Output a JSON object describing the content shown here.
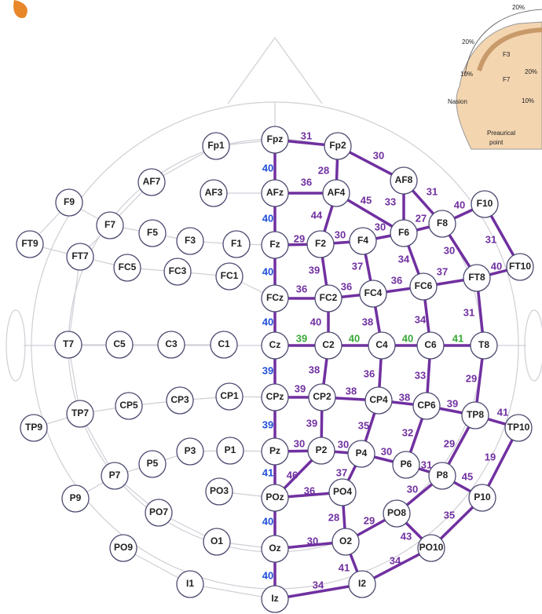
{
  "nodes": [
    "Fp1",
    "AF7",
    "AF3",
    "F9",
    "F7",
    "F5",
    "F3",
    "F1",
    "FT9",
    "FT7",
    "FC5",
    "FC3",
    "FC1",
    "T7",
    "C5",
    "C3",
    "C1",
    "CP1",
    "CP3",
    "CP5",
    "TP7",
    "TP9",
    "P3",
    "P1",
    "P5",
    "P7",
    "P9",
    "PO3",
    "PO7",
    "O1",
    "PO9",
    "I1",
    "Fpz",
    "Fp2",
    "AFz",
    "AF4",
    "AF8",
    "Fz",
    "F2",
    "F4",
    "F6",
    "F8",
    "F10",
    "FCz",
    "FC2",
    "FC4",
    "FC6",
    "FT8",
    "FT10",
    "Cz",
    "C2",
    "C4",
    "C6",
    "T8",
    "CPz",
    "CP2",
    "CP4",
    "CP6",
    "TP8",
    "TP10",
    "Pz",
    "P2",
    "P4",
    "P6",
    "P8",
    "P10",
    "POz",
    "PO4",
    "PO8",
    "O2",
    "PO10",
    "Oz",
    "I2",
    "Iz"
  ],
  "edge_labels": [
    31,
    30,
    28,
    36,
    45,
    33,
    31,
    44,
    40,
    27,
    30,
    31,
    29,
    30,
    30,
    39,
    37,
    34,
    36,
    36,
    36,
    37,
    40,
    40,
    38,
    34,
    31,
    39,
    40,
    40,
    41,
    38,
    36,
    33,
    29,
    39,
    38,
    38,
    39,
    41,
    39,
    35,
    32,
    29,
    19,
    30,
    30,
    30,
    31,
    45,
    46,
    37,
    30,
    36,
    28,
    29,
    43,
    35,
    30,
    41,
    34,
    34,
    40,
    40,
    40,
    40,
    39,
    39,
    41,
    40,
    40
  ],
  "inset_texts": [
    "20%",
    "20%",
    "10%",
    "Nasion",
    "20%",
    "10%",
    "Preaurical",
    "point",
    "F7",
    "F3"
  ]
}
